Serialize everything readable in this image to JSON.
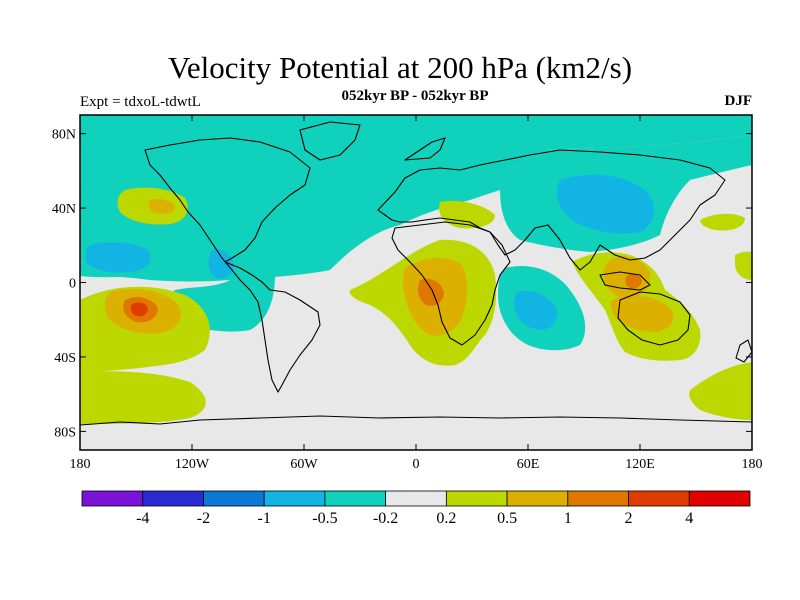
{
  "title": "Velocity Potential at 200 hPa (km2/s)",
  "subtitle": "052kyr BP - 052kyr BP",
  "left_label": "Expt = tdxoL-tdwtL",
  "right_label": "DJF",
  "map": {
    "projection": "cylindrical-equidistant",
    "lon_range": [
      -180,
      180
    ],
    "lat_range": [
      -90,
      90
    ],
    "lat_ticks": [
      {
        "value": 80,
        "label": "80N"
      },
      {
        "value": 40,
        "label": "40N"
      },
      {
        "value": 0,
        "label": "0"
      },
      {
        "value": -40,
        "label": "40S"
      },
      {
        "value": -80,
        "label": "80S"
      }
    ],
    "lon_ticks": [
      {
        "value": -180,
        "label": "180"
      },
      {
        "value": -120,
        "label": "120W"
      },
      {
        "value": -60,
        "label": "60W"
      },
      {
        "value": 0,
        "label": "0"
      },
      {
        "value": 60,
        "label": "60E"
      },
      {
        "value": 120,
        "label": "120E"
      },
      {
        "value": 180,
        "label": "180"
      }
    ],
    "background_color": "#e8e8e8",
    "coastline_color": "#000000"
  },
  "colorbar": {
    "colors": [
      "#7a12d8",
      "#2a2ad2",
      "#0a78d4",
      "#12b4e4",
      "#10d2bc",
      "#e8e8e8",
      "#bcd800",
      "#dcb000",
      "#e07800",
      "#e03c00",
      "#e00000"
    ],
    "levels": [
      "-4",
      "-2",
      "-1",
      "-0.5",
      "-0.2",
      "0.2",
      "0.5",
      "1",
      "2",
      "4"
    ]
  }
}
